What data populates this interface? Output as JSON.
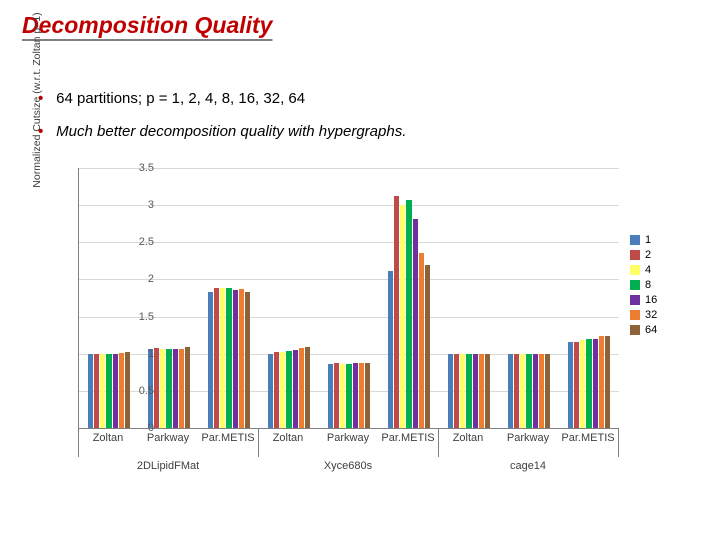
{
  "title": "Decomposition Quality",
  "bullets": [
    "64 partitions; p = 1, 2, 4, 8, 16, 32, 64",
    "Much better decomposition quality with hypergraphs."
  ],
  "chart": {
    "type": "bar",
    "ylabel": "Normalized Cutsize (w.r.t. Zoltan p=1)",
    "ylim": [
      0,
      3.5
    ],
    "ytick_step": 0.5,
    "yticks": [
      0,
      0.5,
      1,
      1.5,
      2,
      2.5,
      3,
      3.5
    ],
    "grid_color": "#d9d9d9",
    "axis_color": "#808080",
    "label_fontsize": 11,
    "background_color": "#ffffff",
    "series": [
      {
        "name": "1",
        "color": "#4a7ebb"
      },
      {
        "name": "2",
        "color": "#be4b48"
      },
      {
        "name": "4",
        "color": "#ffff66"
      },
      {
        "name": "8",
        "color": "#00b050"
      },
      {
        "name": "16",
        "color": "#7030a0"
      },
      {
        "name": "32",
        "color": "#ed7d31"
      },
      {
        "name": "64",
        "color": "#8c6239"
      }
    ],
    "datasets": [
      "2DLipidFMat",
      "Xyce680s",
      "cage14"
    ],
    "categories": [
      "Zoltan",
      "Parkway",
      "Par.METIS",
      "Zoltan",
      "Parkway",
      "Par.METIS",
      "Zoltan",
      "Parkway",
      "Par.METIS"
    ],
    "values": [
      [
        1.0,
        1.0,
        1.0,
        1.0,
        1.0,
        1.01,
        1.03
      ],
      [
        1.06,
        1.08,
        1.06,
        1.06,
        1.07,
        1.07,
        1.09
      ],
      [
        1.83,
        1.88,
        1.88,
        1.88,
        1.86,
        1.87,
        1.83
      ],
      [
        1.0,
        1.03,
        1.03,
        1.04,
        1.05,
        1.08,
        1.09
      ],
      [
        0.86,
        0.87,
        0.86,
        0.86,
        0.87,
        0.87,
        0.88
      ],
      [
        2.12,
        3.12,
        3.0,
        3.07,
        2.82,
        2.35,
        2.2
      ],
      [
        1.0,
        1.0,
        1.0,
        1.0,
        1.0,
        1.0,
        1.0
      ],
      [
        1.0,
        1.0,
        1.0,
        1.0,
        1.0,
        1.0,
        1.0
      ],
      [
        1.16,
        1.16,
        1.19,
        1.2,
        1.2,
        1.24,
        1.24
      ]
    ]
  }
}
